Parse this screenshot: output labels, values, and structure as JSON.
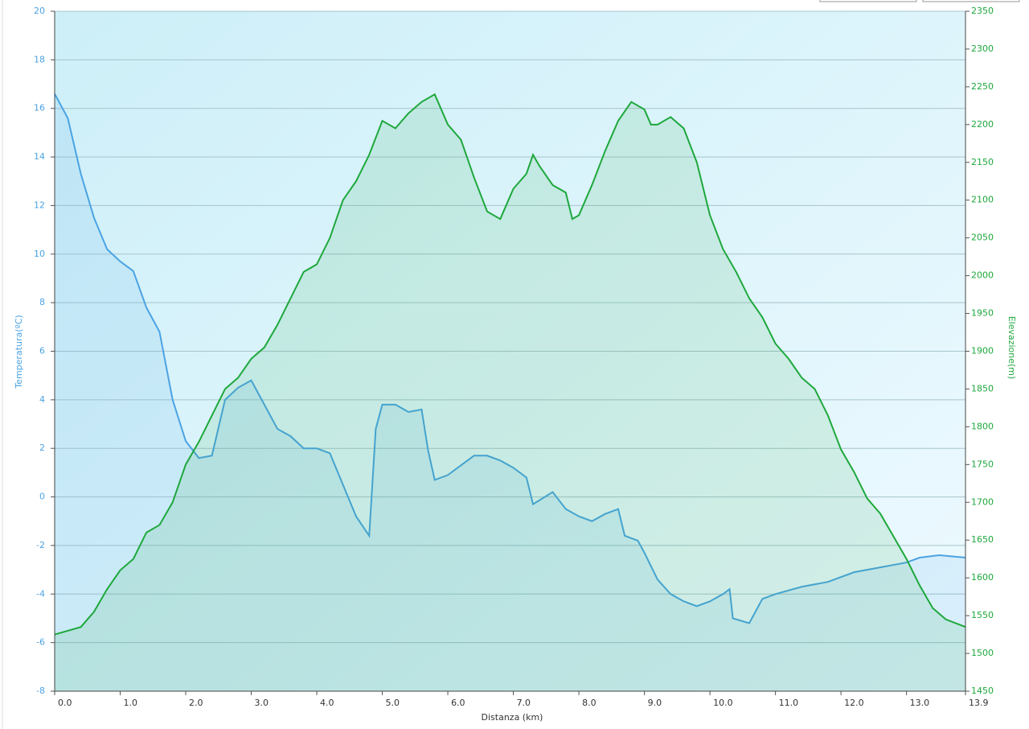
{
  "chart_data": {
    "type": "line",
    "xlabel": "Distanza  (km)",
    "ylabel": "Temperatura(ºC)",
    "y2label": "Elevazione(m)",
    "xlim": [
      0,
      13.9
    ],
    "xticks": [
      {
        "value": 0,
        "label": "0.0"
      },
      {
        "value": 1,
        "label": "1.0"
      },
      {
        "value": 2,
        "label": "2.0"
      },
      {
        "value": 3,
        "label": "3.0"
      },
      {
        "value": 4,
        "label": "4.0"
      },
      {
        "value": 5,
        "label": "5.0"
      },
      {
        "value": 6,
        "label": "6.0"
      },
      {
        "value": 7,
        "label": "7.0"
      },
      {
        "value": 8,
        "label": "8.0"
      },
      {
        "value": 9,
        "label": "9.0"
      },
      {
        "value": 10,
        "label": "10.0"
      },
      {
        "value": 11,
        "label": "11.0"
      },
      {
        "value": 12,
        "label": "12.0"
      },
      {
        "value": 13,
        "label": "13.0"
      },
      {
        "value": 13.9,
        "label": "13.9"
      }
    ],
    "ylim": [
      -8,
      20
    ],
    "yticks": [
      -8,
      -6,
      -4,
      -2,
      0,
      2,
      4,
      6,
      8,
      10,
      12,
      14,
      16,
      18,
      20
    ],
    "y2lim": [
      1450,
      2350
    ],
    "y2ticks": [
      1450,
      1500,
      1550,
      1600,
      1650,
      1700,
      1750,
      1800,
      1850,
      1900,
      1950,
      2000,
      2050,
      2100,
      2150,
      2200,
      2250,
      2300,
      2350
    ],
    "grid": true,
    "series": [
      {
        "color": "#4ba3e3",
        "axis": "y",
        "x": [
          0,
          0.2,
          0.4,
          0.6,
          0.8,
          1.0,
          1.2,
          1.4,
          1.6,
          1.8,
          2.0,
          2.2,
          2.4,
          2.6,
          2.8,
          3.0,
          3.2,
          3.4,
          3.6,
          3.8,
          4.0,
          4.2,
          4.4,
          4.6,
          4.8,
          4.9,
          5.0,
          5.2,
          5.4,
          5.6,
          5.7,
          5.8,
          6.0,
          6.2,
          6.4,
          6.6,
          6.8,
          7.0,
          7.2,
          7.3,
          7.6,
          7.8,
          8.0,
          8.2,
          8.4,
          8.6,
          8.7,
          8.9,
          9.0,
          9.2,
          9.4,
          9.6,
          9.8,
          10.0,
          10.2,
          10.3,
          10.35,
          10.6,
          10.8,
          11.0,
          11.4,
          11.8,
          12.2,
          12.6,
          13.0,
          13.2,
          13.5,
          13.9
        ],
        "values": [
          16.6,
          15.6,
          13.3,
          11.5,
          10.2,
          9.7,
          9.3,
          7.8,
          6.8,
          4.0,
          2.3,
          1.6,
          1.7,
          4.0,
          4.5,
          4.8,
          3.8,
          2.8,
          2.5,
          2.0,
          2.0,
          1.8,
          0.5,
          -0.8,
          -1.6,
          2.8,
          3.8,
          3.8,
          3.5,
          3.6,
          1.9,
          0.7,
          0.9,
          1.3,
          1.7,
          1.7,
          1.5,
          1.2,
          0.8,
          -0.3,
          0.2,
          -0.5,
          -0.8,
          -1.0,
          -0.7,
          -0.5,
          -1.6,
          -1.8,
          -2.3,
          -3.4,
          -4.0,
          -4.3,
          -4.5,
          -4.3,
          -4.0,
          -3.8,
          -5.0,
          -5.2,
          -4.2,
          -4.0,
          -3.7,
          -3.5,
          -3.1,
          -2.9,
          -2.7,
          -2.5,
          -2.4,
          -2.5
        ]
      },
      {
        "color": "#1ea83c",
        "axis": "y2",
        "x": [
          0,
          0.4,
          0.6,
          0.8,
          1.0,
          1.2,
          1.4,
          1.6,
          1.8,
          2.0,
          2.2,
          2.4,
          2.6,
          2.8,
          3.0,
          3.2,
          3.4,
          3.6,
          3.8,
          4.0,
          4.2,
          4.4,
          4.6,
          4.8,
          5.0,
          5.2,
          5.4,
          5.6,
          5.8,
          6.0,
          6.2,
          6.4,
          6.6,
          6.8,
          7.0,
          7.2,
          7.3,
          7.4,
          7.6,
          7.8,
          7.9,
          8.0,
          8.2,
          8.4,
          8.6,
          8.8,
          9.0,
          9.1,
          9.2,
          9.4,
          9.6,
          9.8,
          10.0,
          10.2,
          10.4,
          10.6,
          10.8,
          11.0,
          11.2,
          11.4,
          11.6,
          11.8,
          12.0,
          12.2,
          12.4,
          12.6,
          12.8,
          13.0,
          13.2,
          13.4,
          13.6,
          13.9
        ],
        "values": [
          1525,
          1535,
          1555,
          1585,
          1610,
          1625,
          1660,
          1670,
          1700,
          1750,
          1780,
          1815,
          1850,
          1865,
          1890,
          1905,
          1935,
          1970,
          2005,
          2015,
          2050,
          2100,
          2125,
          2160,
          2205,
          2195,
          2215,
          2230,
          2240,
          2200,
          2180,
          2130,
          2085,
          2075,
          2115,
          2135,
          2160,
          2145,
          2120,
          2110,
          2075,
          2080,
          2120,
          2165,
          2205,
          2230,
          2220,
          2200,
          2200,
          2210,
          2195,
          2150,
          2080,
          2035,
          2005,
          1970,
          1945,
          1910,
          1890,
          1865,
          1850,
          1815,
          1770,
          1740,
          1705,
          1685,
          1655,
          1625,
          1590,
          1560,
          1545,
          1535
        ]
      }
    ]
  }
}
